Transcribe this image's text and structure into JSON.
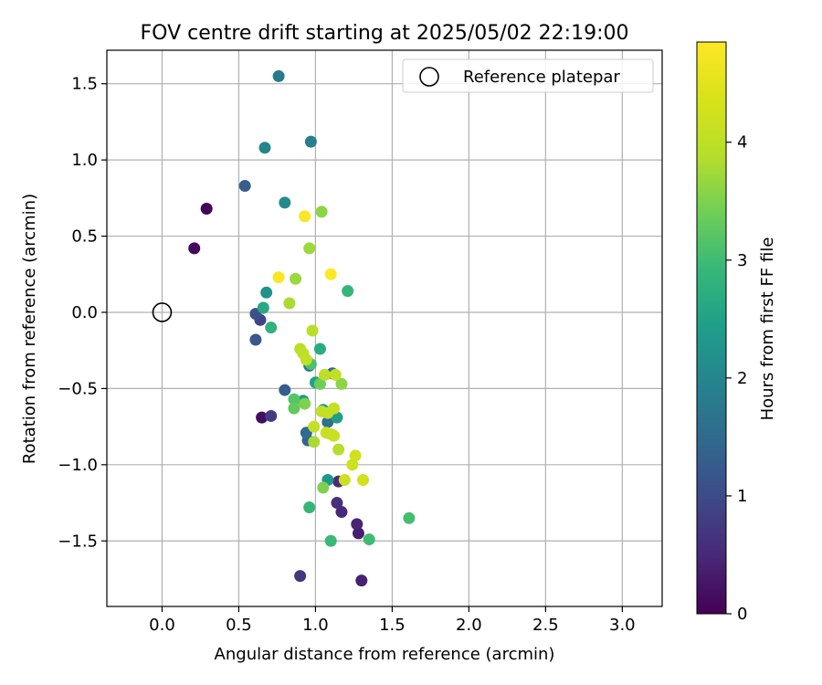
{
  "chart_data": {
    "type": "scatter",
    "title": "FOV centre drift starting at 2025/05/02 22:19:00",
    "xlabel": "Angular distance from reference (arcmin)",
    "ylabel": "Rotation from reference (arcmin)",
    "xlim": [
      -0.36,
      3.26
    ],
    "ylim": [
      -1.93,
      1.72
    ],
    "xticks": [
      0.0,
      0.5,
      1.0,
      1.5,
      2.0,
      2.5,
      3.0
    ],
    "xtick_labels": [
      "0.0",
      "0.5",
      "1.0",
      "1.5",
      "2.0",
      "2.5",
      "3.0"
    ],
    "yticks": [
      1.5,
      1.0,
      0.5,
      0.0,
      -0.5,
      -1.0,
      -1.5
    ],
    "ytick_labels": [
      "1.5",
      "1.0",
      "0.5",
      "0.0",
      "−0.5",
      "−1.0",
      "−1.5"
    ],
    "grid": true,
    "legend": {
      "position": "top-right",
      "label": "Reference platepar"
    },
    "reference_point": {
      "x": 0.0,
      "y": 0.0
    },
    "colorbar": {
      "label": "Hours from first FF file",
      "colormap": "viridis",
      "range": [
        0,
        4.85
      ],
      "ticks": [
        0,
        1,
        2,
        3,
        4
      ],
      "tick_labels": [
        "0",
        "1",
        "2",
        "3",
        "4"
      ]
    },
    "points": [
      {
        "x": 0.29,
        "y": 0.68,
        "c": 0.05
      },
      {
        "x": 0.21,
        "y": 0.42,
        "c": 0.1
      },
      {
        "x": 0.65,
        "y": -0.69,
        "c": 0.15
      },
      {
        "x": 1.3,
        "y": -1.76,
        "c": 0.4
      },
      {
        "x": 1.28,
        "y": -1.45,
        "c": 0.35
      },
      {
        "x": 1.27,
        "y": -1.39,
        "c": 0.45
      },
      {
        "x": 1.17,
        "y": -1.31,
        "c": 0.5
      },
      {
        "x": 1.14,
        "y": -1.25,
        "c": 0.6
      },
      {
        "x": 1.15,
        "y": -1.11,
        "c": 0.55
      },
      {
        "x": 0.9,
        "y": -1.73,
        "c": 0.7
      },
      {
        "x": 0.71,
        "y": -0.68,
        "c": 0.8
      },
      {
        "x": 0.64,
        "y": -0.05,
        "c": 0.9
      },
      {
        "x": 0.61,
        "y": -0.01,
        "c": 1.1
      },
      {
        "x": 0.61,
        "y": -0.18,
        "c": 1.2
      },
      {
        "x": 0.54,
        "y": 0.83,
        "c": 1.3
      },
      {
        "x": 0.8,
        "y": -0.51,
        "c": 1.3
      },
      {
        "x": 0.95,
        "y": -0.84,
        "c": 1.4
      },
      {
        "x": 0.94,
        "y": -0.79,
        "c": 1.5
      },
      {
        "x": 1.11,
        "y": -0.4,
        "c": 1.5
      },
      {
        "x": 1.08,
        "y": -0.72,
        "c": 1.6
      },
      {
        "x": 0.96,
        "y": -0.35,
        "c": 1.7
      },
      {
        "x": 0.76,
        "y": 1.55,
        "c": 1.8
      },
      {
        "x": 0.97,
        "y": 1.12,
        "c": 1.85
      },
      {
        "x": 0.67,
        "y": 1.08,
        "c": 2.0
      },
      {
        "x": 0.8,
        "y": 0.72,
        "c": 2.1
      },
      {
        "x": 0.68,
        "y": 0.13,
        "c": 2.2
      },
      {
        "x": 1.08,
        "y": -1.1,
        "c": 2.3
      },
      {
        "x": 1.05,
        "y": -0.64,
        "c": 2.3
      },
      {
        "x": 1.14,
        "y": -0.69,
        "c": 2.4
      },
      {
        "x": 0.92,
        "y": -0.58,
        "c": 2.4
      },
      {
        "x": 1.0,
        "y": -0.46,
        "c": 2.5
      },
      {
        "x": 0.66,
        "y": 0.03,
        "c": 2.6
      },
      {
        "x": 1.03,
        "y": -0.24,
        "c": 2.7
      },
      {
        "x": 0.71,
        "y": -0.1,
        "c": 2.8
      },
      {
        "x": 1.21,
        "y": 0.14,
        "c": 2.9
      },
      {
        "x": 0.96,
        "y": -1.28,
        "c": 2.9
      },
      {
        "x": 1.1,
        "y": -1.5,
        "c": 2.95
      },
      {
        "x": 1.35,
        "y": -1.49,
        "c": 3.0
      },
      {
        "x": 1.61,
        "y": -1.35,
        "c": 3.05
      },
      {
        "x": 0.97,
        "y": -0.34,
        "c": 3.1
      },
      {
        "x": 0.86,
        "y": -0.57,
        "c": 3.2
      },
      {
        "x": 0.86,
        "y": -0.63,
        "c": 3.3
      },
      {
        "x": 1.03,
        "y": -0.47,
        "c": 3.4
      },
      {
        "x": 0.93,
        "y": -0.6,
        "c": 3.5
      },
      {
        "x": 1.05,
        "y": -1.15,
        "c": 3.5
      },
      {
        "x": 1.17,
        "y": -0.47,
        "c": 3.6
      },
      {
        "x": 1.04,
        "y": 0.66,
        "c": 3.6
      },
      {
        "x": 0.96,
        "y": 0.42,
        "c": 3.7
      },
      {
        "x": 0.87,
        "y": 0.22,
        "c": 3.7
      },
      {
        "x": 0.83,
        "y": 0.06,
        "c": 3.8
      },
      {
        "x": 0.99,
        "y": -0.85,
        "c": 3.8
      },
      {
        "x": 1.15,
        "y": -0.9,
        "c": 3.9
      },
      {
        "x": 0.98,
        "y": -0.12,
        "c": 3.95
      },
      {
        "x": 0.9,
        "y": -0.24,
        "c": 3.95
      },
      {
        "x": 0.92,
        "y": -0.27,
        "c": 4.0
      },
      {
        "x": 0.94,
        "y": -0.31,
        "c": 4.05
      },
      {
        "x": 1.06,
        "y": -0.41,
        "c": 4.0
      },
      {
        "x": 1.13,
        "y": -0.41,
        "c": 4.05
      },
      {
        "x": 1.04,
        "y": -0.65,
        "c": 4.05
      },
      {
        "x": 1.12,
        "y": -0.63,
        "c": 4.1
      },
      {
        "x": 1.08,
        "y": -0.66,
        "c": 4.1
      },
      {
        "x": 0.99,
        "y": -0.75,
        "c": 4.1
      },
      {
        "x": 1.07,
        "y": -0.79,
        "c": 4.15
      },
      {
        "x": 1.1,
        "y": -0.8,
        "c": 4.1
      },
      {
        "x": 1.12,
        "y": -0.81,
        "c": 4.15
      },
      {
        "x": 1.24,
        "y": -1.0,
        "c": 4.2
      },
      {
        "x": 1.26,
        "y": -0.94,
        "c": 4.25
      },
      {
        "x": 1.19,
        "y": -1.1,
        "c": 4.2
      },
      {
        "x": 1.31,
        "y": -1.1,
        "c": 4.25
      },
      {
        "x": 0.93,
        "y": 0.63,
        "c": 4.8
      },
      {
        "x": 0.76,
        "y": 0.23,
        "c": 4.8
      },
      {
        "x": 1.1,
        "y": 0.25,
        "c": 4.85
      }
    ]
  }
}
